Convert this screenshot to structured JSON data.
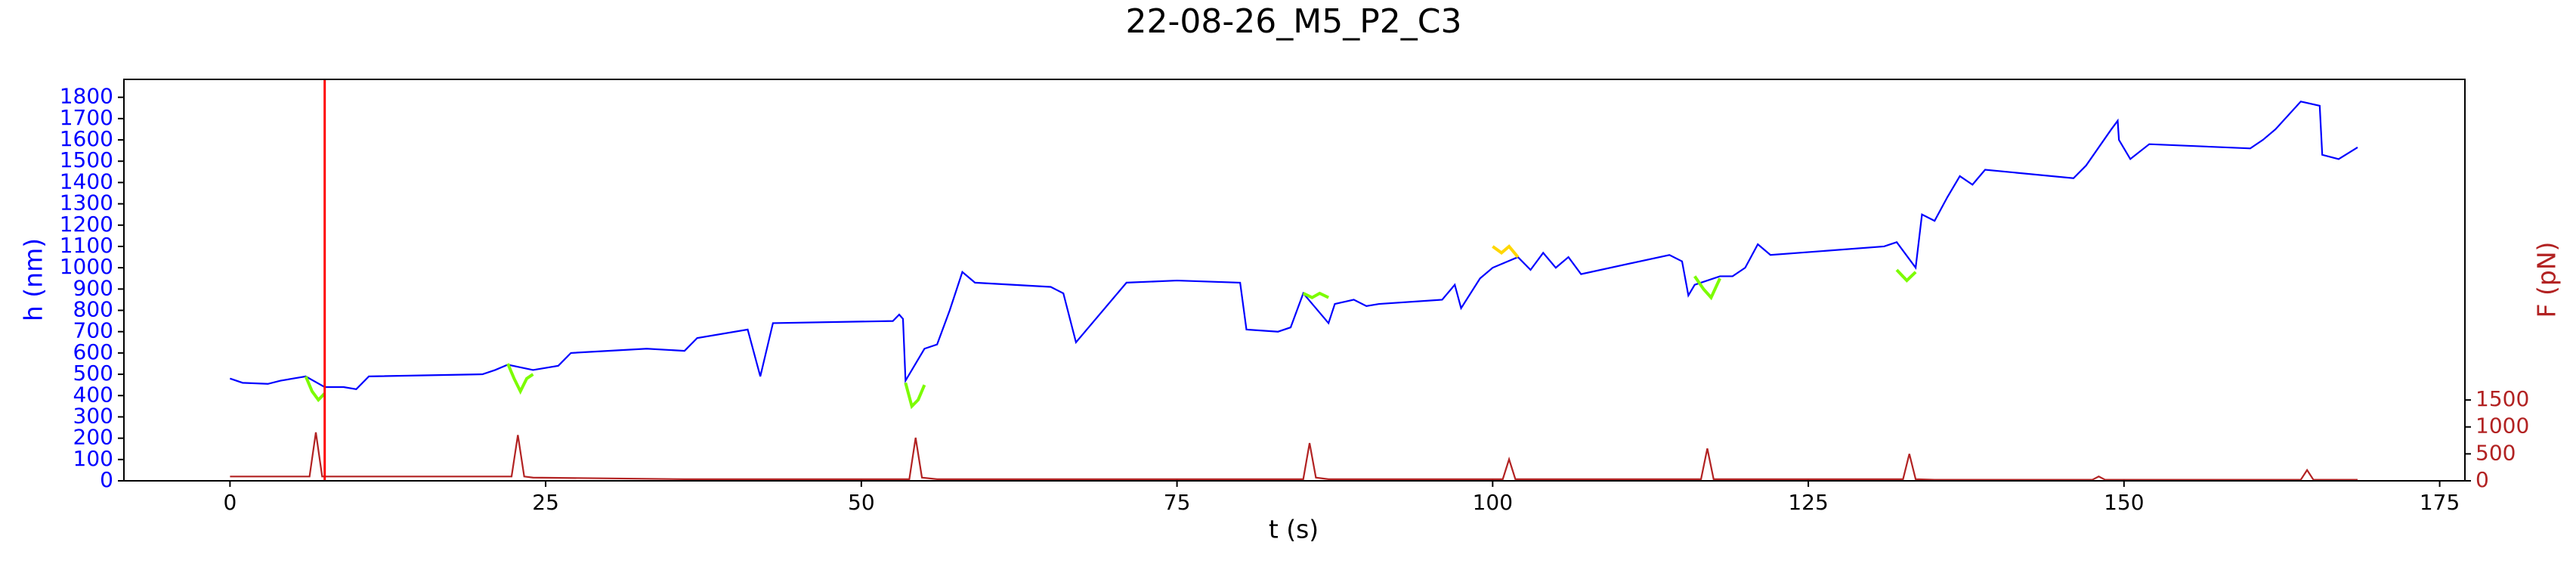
{
  "chart_data": {
    "type": "line",
    "title": "22-08-26_M5_P2_C3",
    "xlabel": "t (s)",
    "ylabel": "h (nm)",
    "y2label": "F (pN)",
    "ylabel_color": "#0000ff",
    "y2label_color": "#b22222",
    "xlim": [
      -8.4,
      177
    ],
    "ylim": [
      0,
      1884
    ],
    "y2lim": [
      0,
      7450
    ],
    "xticks": [
      0,
      25,
      50,
      75,
      100,
      125,
      150,
      175
    ],
    "yticks": [
      0,
      100,
      200,
      300,
      400,
      500,
      600,
      700,
      800,
      900,
      1000,
      1100,
      1200,
      1300,
      1400,
      1500,
      1600,
      1700,
      1800
    ],
    "y2ticks": [
      0,
      500,
      1000,
      1500
    ],
    "vline": {
      "x": 7.5,
      "color": "#ff0000"
    },
    "series": [
      {
        "color": "#0000ff",
        "x": [
          0,
          1,
          3,
          4,
          5,
          6,
          7.5,
          9,
          10,
          11,
          20,
          21,
          22,
          24,
          26,
          27,
          33,
          36,
          37,
          41,
          42,
          43,
          52.5,
          53,
          53.3,
          53.5,
          55,
          56,
          57,
          58,
          59,
          65,
          66,
          67,
          71,
          75,
          80,
          80.5,
          83,
          84,
          85,
          87,
          87.5,
          89,
          90,
          91,
          96,
          97,
          97.5,
          99,
          100,
          102,
          103,
          104,
          105,
          106,
          107,
          114,
          115,
          115.5,
          116,
          118,
          119,
          120,
          121,
          122,
          131,
          132,
          133.5,
          134,
          135,
          136,
          137,
          138,
          139,
          146,
          147,
          149,
          149.5,
          149.6,
          150.5,
          152,
          160,
          161,
          162,
          164,
          165.5,
          165.7,
          167,
          168.5
        ],
        "values": [
          480,
          460,
          455,
          470,
          480,
          490,
          440,
          440,
          430,
          490,
          500,
          520,
          545,
          520,
          540,
          600,
          620,
          610,
          670,
          710,
          490,
          740,
          750,
          780,
          760,
          470,
          620,
          640,
          800,
          980,
          930,
          910,
          880,
          650,
          930,
          940,
          930,
          710,
          700,
          720,
          880,
          740,
          830,
          850,
          820,
          830,
          850,
          920,
          810,
          950,
          1000,
          1050,
          990,
          1070,
          1000,
          1050,
          970,
          1060,
          1030,
          870,
          920,
          960,
          960,
          1000,
          1110,
          1060,
          1100,
          1120,
          1000,
          1250,
          1220,
          1330,
          1430,
          1390,
          1460,
          1420,
          1480,
          1650,
          1690,
          1600,
          1510,
          1580,
          1560,
          1600,
          1650,
          1780,
          1760,
          1530,
          1510,
          1565
        ]
      },
      {
        "color": "#7cfc00",
        "x": [
          6,
          6.5,
          7,
          7.5
        ],
        "values": [
          490,
          420,
          380,
          410
        ]
      },
      {
        "color": "#7cfc00",
        "x": [
          22,
          22.5,
          23,
          23.5,
          24
        ],
        "values": [
          550,
          480,
          420,
          480,
          500
        ]
      },
      {
        "color": "#7cfc00",
        "x": [
          53.5,
          54,
          54.5,
          55
        ],
        "values": [
          460,
          350,
          380,
          450
        ]
      },
      {
        "color": "#7cfc00",
        "x": [
          85,
          85.7,
          86.3,
          87
        ],
        "values": [
          880,
          860,
          880,
          860
        ]
      },
      {
        "color": "#ffd700",
        "x": [
          100,
          100.7,
          101.3,
          102
        ],
        "values": [
          1100,
          1070,
          1100,
          1050
        ]
      },
      {
        "color": "#7cfc00",
        "x": [
          116,
          116.7,
          117.3,
          118
        ],
        "values": [
          960,
          900,
          860,
          950
        ]
      },
      {
        "color": "#7cfc00",
        "x": [
          132,
          132.8,
          133.5
        ],
        "values": [
          990,
          940,
          980
        ]
      },
      {
        "color": "#b22222",
        "axis": "y2",
        "x": [
          0,
          4,
          6.3,
          6.8,
          7.3,
          8,
          21,
          22.3,
          22.8,
          23.3,
          24,
          36,
          37,
          53.8,
          54.3,
          54.8,
          56,
          85,
          85.5,
          86,
          87,
          100.8,
          101.3,
          101.8,
          103,
          116.5,
          117,
          117.5,
          119,
          132.5,
          133,
          133.5,
          135,
          147.5,
          148,
          148.5,
          164,
          164.5,
          165,
          168.5
        ],
        "values": [
          80,
          80,
          80,
          900,
          80,
          80,
          80,
          80,
          850,
          80,
          60,
          30,
          30,
          30,
          800,
          60,
          30,
          30,
          700,
          60,
          30,
          30,
          400,
          30,
          30,
          30,
          600,
          30,
          30,
          30,
          500,
          30,
          20,
          20,
          80,
          20,
          20,
          200,
          20,
          20
        ]
      }
    ]
  }
}
